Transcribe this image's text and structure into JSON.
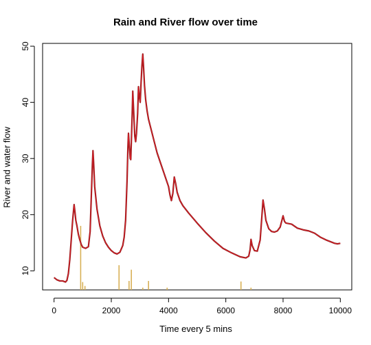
{
  "chart_data": {
    "type": "line",
    "title": "Rain and River flow over time",
    "xlabel": "Time every 5 mins",
    "ylabel": "River and water flow",
    "xlim": [
      -400,
      10400
    ],
    "ylim": [
      6.6,
      50.5
    ],
    "xticks": [
      0,
      2000,
      4000,
      6000,
      8000,
      10000
    ],
    "yticks": [
      10,
      20,
      30,
      40,
      50
    ],
    "grid": false,
    "series": [
      {
        "kind": "line",
        "color": "#8b1a1a",
        "highlight_color": "#e0202a",
        "points": [
          [
            0,
            8.8
          ],
          [
            100,
            8.4
          ],
          [
            200,
            8.2
          ],
          [
            300,
            8.2
          ],
          [
            400,
            8.0
          ],
          [
            450,
            8.3
          ],
          [
            500,
            9.5
          ],
          [
            550,
            12.0
          ],
          [
            600,
            15.5
          ],
          [
            650,
            19.0
          ],
          [
            700,
            21.8
          ],
          [
            730,
            20.5
          ],
          [
            760,
            19.0
          ],
          [
            800,
            18.0
          ],
          [
            850,
            16.5
          ],
          [
            900,
            15.5
          ],
          [
            950,
            14.7
          ],
          [
            1000,
            14.2
          ],
          [
            1100,
            14.0
          ],
          [
            1200,
            14.3
          ],
          [
            1260,
            17.0
          ],
          [
            1300,
            23.0
          ],
          [
            1340,
            29.0
          ],
          [
            1360,
            31.4
          ],
          [
            1380,
            29.5
          ],
          [
            1420,
            25.0
          ],
          [
            1500,
            21.0
          ],
          [
            1600,
            18.0
          ],
          [
            1700,
            16.2
          ],
          [
            1800,
            15.0
          ],
          [
            1900,
            14.2
          ],
          [
            2000,
            13.6
          ],
          [
            2100,
            13.2
          ],
          [
            2200,
            13.0
          ],
          [
            2300,
            13.3
          ],
          [
            2400,
            14.5
          ],
          [
            2450,
            16.0
          ],
          [
            2500,
            19.0
          ],
          [
            2550,
            26.0
          ],
          [
            2580,
            32.0
          ],
          [
            2600,
            34.5
          ],
          [
            2620,
            33.0
          ],
          [
            2660,
            30.0
          ],
          [
            2680,
            29.8
          ],
          [
            2700,
            33.0
          ],
          [
            2730,
            38.0
          ],
          [
            2750,
            42.0
          ],
          [
            2780,
            38.5
          ],
          [
            2820,
            34.0
          ],
          [
            2850,
            33.0
          ],
          [
            2880,
            34.5
          ],
          [
            2920,
            38.0
          ],
          [
            2950,
            42.8
          ],
          [
            2980,
            41.0
          ],
          [
            3010,
            40.0
          ],
          [
            3040,
            43.5
          ],
          [
            3070,
            46.5
          ],
          [
            3100,
            48.6
          ],
          [
            3130,
            46.0
          ],
          [
            3160,
            43.0
          ],
          [
            3200,
            40.5
          ],
          [
            3250,
            38.5
          ],
          [
            3300,
            37.0
          ],
          [
            3400,
            35.0
          ],
          [
            3500,
            33.0
          ],
          [
            3600,
            31.0
          ],
          [
            3700,
            29.5
          ],
          [
            3800,
            28.0
          ],
          [
            3900,
            26.5
          ],
          [
            4000,
            25.0
          ],
          [
            4050,
            23.5
          ],
          [
            4100,
            22.5
          ],
          [
            4150,
            23.8
          ],
          [
            4200,
            26.7
          ],
          [
            4250,
            25.5
          ],
          [
            4300,
            24.0
          ],
          [
            4400,
            22.5
          ],
          [
            4500,
            21.6
          ],
          [
            4700,
            20.3
          ],
          [
            5000,
            18.5
          ],
          [
            5300,
            16.8
          ],
          [
            5600,
            15.3
          ],
          [
            5900,
            14.0
          ],
          [
            6200,
            13.2
          ],
          [
            6500,
            12.5
          ],
          [
            6700,
            12.3
          ],
          [
            6800,
            12.6
          ],
          [
            6850,
            13.8
          ],
          [
            6880,
            15.6
          ],
          [
            6920,
            14.5
          ],
          [
            7000,
            13.6
          ],
          [
            7100,
            13.5
          ],
          [
            7200,
            15.5
          ],
          [
            7250,
            19.0
          ],
          [
            7300,
            22.6
          ],
          [
            7350,
            21.0
          ],
          [
            7400,
            19.0
          ],
          [
            7500,
            17.5
          ],
          [
            7600,
            17.0
          ],
          [
            7700,
            16.9
          ],
          [
            7800,
            17.1
          ],
          [
            7900,
            17.8
          ],
          [
            7950,
            18.8
          ],
          [
            8000,
            19.8
          ],
          [
            8050,
            18.8
          ],
          [
            8100,
            18.5
          ],
          [
            8300,
            18.3
          ],
          [
            8500,
            17.6
          ],
          [
            8700,
            17.3
          ],
          [
            8900,
            17.1
          ],
          [
            9100,
            16.7
          ],
          [
            9300,
            16.0
          ],
          [
            9500,
            15.5
          ],
          [
            9700,
            15.1
          ],
          [
            9800,
            14.9
          ],
          [
            9900,
            14.8
          ],
          [
            10000,
            14.9
          ]
        ]
      },
      {
        "kind": "bars",
        "color": "#d8b055",
        "points": [
          [
            930,
            18.0
          ],
          [
            1000,
            8.0
          ],
          [
            1080,
            7.3
          ],
          [
            2270,
            11.0
          ],
          [
            2620,
            8.2
          ],
          [
            2700,
            10.2
          ],
          [
            3100,
            7.0
          ],
          [
            3300,
            8.2
          ],
          [
            3950,
            7.0
          ],
          [
            6530,
            8.1
          ],
          [
            6880,
            7.0
          ]
        ]
      }
    ]
  }
}
